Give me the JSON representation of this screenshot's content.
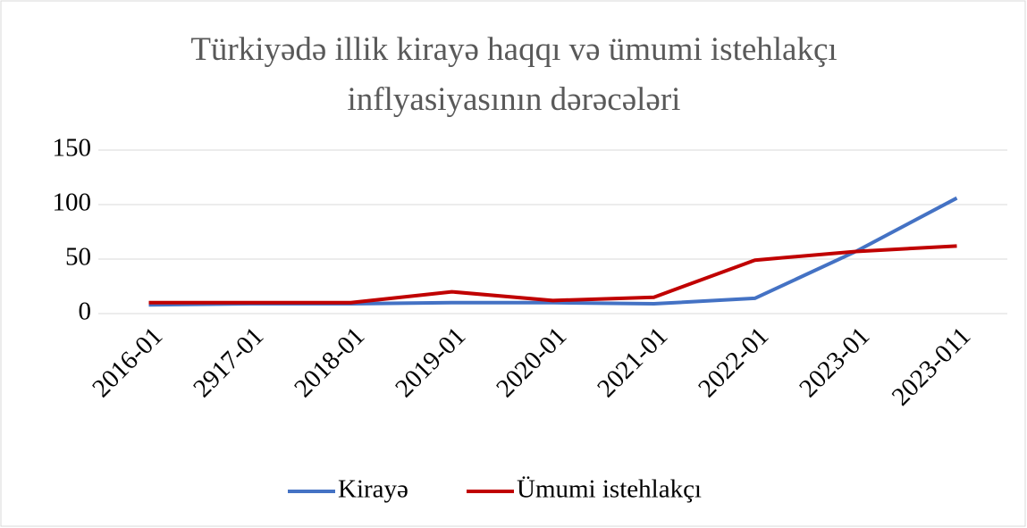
{
  "chart_data": {
    "type": "line",
    "title": "Türkiyədə illik kirayə haqqı və ümumi istehlakçı inflyasiyasının dərəcələri",
    "categories": [
      "2016-01",
      "2917-01",
      "2018-01",
      "2019-01",
      "2020-01",
      "2021-01",
      "2022-01",
      "2023-01",
      "2023-011"
    ],
    "series": [
      {
        "name": "Kirayə",
        "color": "#4472c4",
        "values": [
          8,
          9,
          9,
          10,
          10,
          9,
          14,
          57,
          106
        ]
      },
      {
        "name": "Ümumi istehlakçı",
        "color": "#c00000",
        "values": [
          10,
          10,
          10,
          20,
          12,
          15,
          49,
          57,
          62
        ]
      }
    ],
    "ylim": [
      0,
      150
    ],
    "yticks": [
      0,
      50,
      100,
      150
    ],
    "grid": true,
    "legend": "bottom"
  }
}
